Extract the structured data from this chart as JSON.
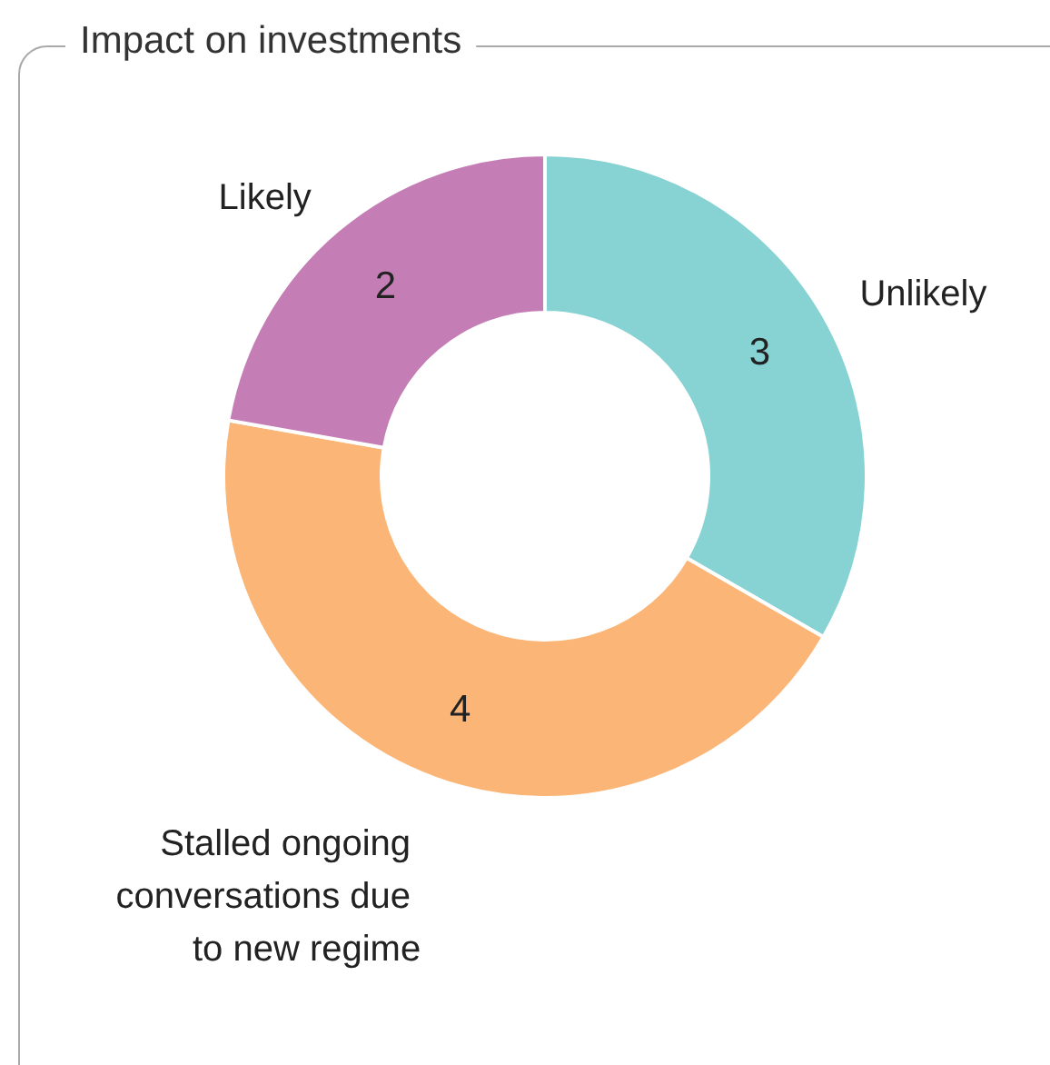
{
  "chart_data": {
    "type": "donut",
    "title": "Impact on investments",
    "categories": [
      "Unlikely",
      "Stalled ongoing conversations due to new regime",
      "Likely"
    ],
    "values": [
      3,
      4,
      2
    ],
    "colors": [
      "#87d2d3",
      "#fbb677",
      "#c47eb5"
    ],
    "data_labels": true,
    "legend": false
  }
}
